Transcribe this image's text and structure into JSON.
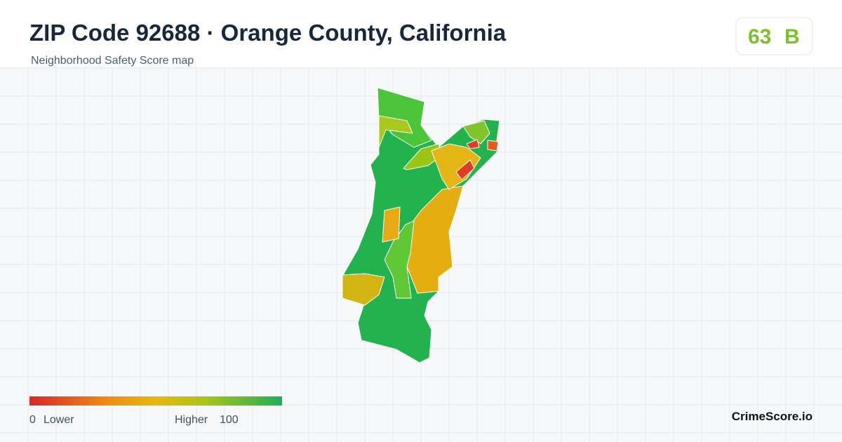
{
  "header": {
    "title": "ZIP Code 92688 · Orange County, California",
    "subtitle": "Neighborhood Safety Score map"
  },
  "score": {
    "value": 63,
    "grade": "B"
  },
  "legend": {
    "min": 0,
    "min_label": "Lower",
    "max_label": "Higher",
    "max": 100
  },
  "brand": "CrimeScore.io"
}
